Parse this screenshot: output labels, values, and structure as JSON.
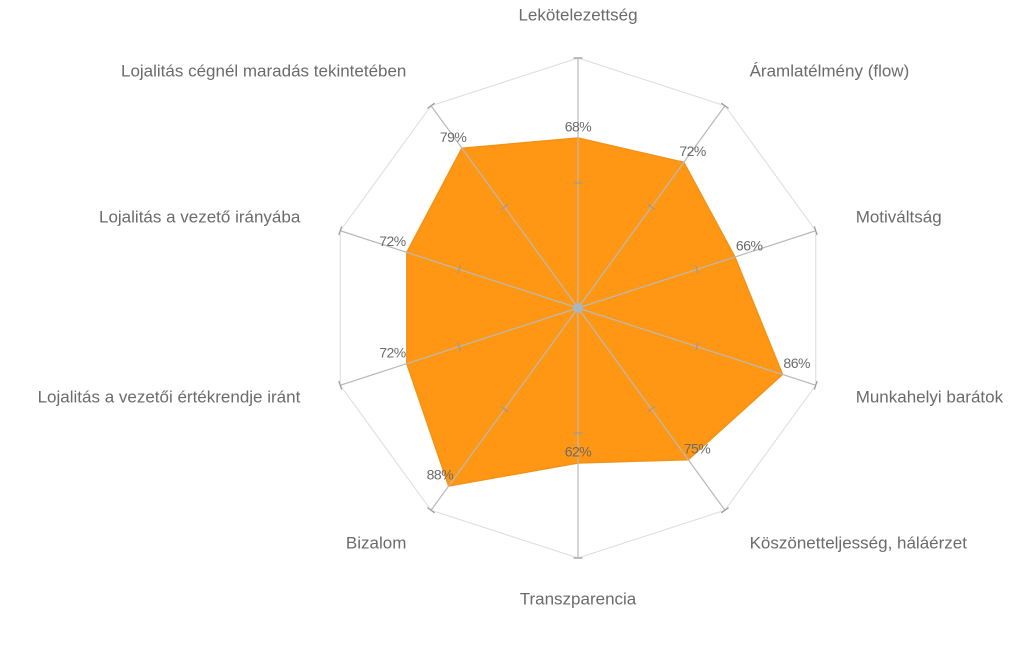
{
  "chart_data": {
    "type": "radar",
    "title": "",
    "categories": [
      "Lekötelezettség",
      "Áramlatélmény (flow)",
      "Motiváltság",
      "Munkahelyi barátok",
      "Köszönetteljesség, háláérzet",
      "Transzparencia",
      "Bizalom",
      "Lojalitás a vezetői értékrendje iránt",
      "Lojalitás a vezető irányába",
      "Lojalitás cégnél maradás tekintetében"
    ],
    "series": [
      {
        "values": [
          68,
          72,
          66,
          86,
          75,
          62,
          88,
          72,
          72,
          79
        ],
        "value_labels": [
          "68%",
          "72%",
          "66%",
          "86%",
          "75%",
          "62%",
          "88%",
          "72%",
          "72%",
          "79%"
        ]
      }
    ],
    "rmax": 100,
    "grid_levels": 2,
    "colors": {
      "fill": "#ff9614",
      "stroke": "#f39316",
      "grid": "#dcdcdc",
      "spoke": "#b9b9b9",
      "text": "#6b6b6b"
    }
  }
}
